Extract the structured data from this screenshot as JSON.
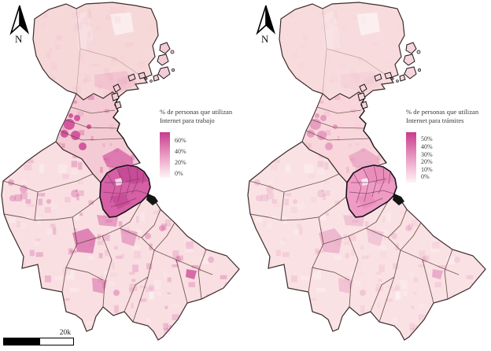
{
  "maps": [
    {
      "id": "trabajo",
      "legend_title": [
        "% de personas que utilizan",
        "Internet para trabajo"
      ],
      "legend_labels": [
        "60%",
        "40%",
        "20%",
        "0%"
      ],
      "speckle_intensity": 1.0,
      "fills": {
        "north": "#f7d8d9",
        "south": "#f9dfe2",
        "neck": "#f4cbd4",
        "islands": "#f3ccd6",
        "caba": "#d65fa5",
        "caba_dark": "#b83787"
      }
    },
    {
      "id": "tramites",
      "legend_title": [
        "% de personas que utilizan",
        "Internet para trámites"
      ],
      "legend_labels": [
        "50%",
        "40%",
        "30%",
        "20%",
        "10%",
        "0%"
      ],
      "speckle_intensity": 0.45,
      "fills": {
        "north": "#f8dcdd",
        "south": "#fae2e4",
        "neck": "#f8d6db",
        "islands": "#f6d6db",
        "caba": "#ef9cc5",
        "caba_dark": "#e47fb2"
      }
    }
  ],
  "compass": {
    "label": "N"
  },
  "scale_bar": {
    "label": "20k"
  },
  "colors": {
    "accent": "#ca3b91",
    "border": "#5d4038",
    "outline": "#3c2b2b",
    "caba_border": "#18101a",
    "coast": "#1b1418",
    "text": "#3a3a3a",
    "legend_gradient_top": "#c93b90",
    "legend_gradient_bottom": "#fdf4f6"
  }
}
